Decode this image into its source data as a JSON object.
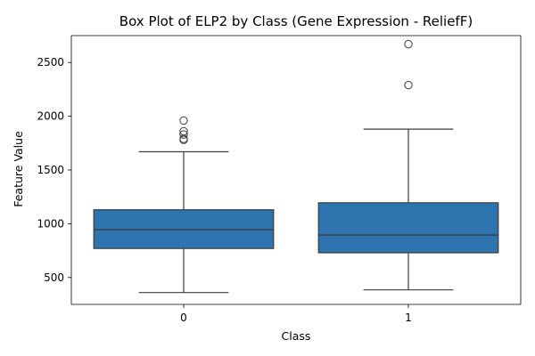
{
  "chart_data": {
    "type": "box",
    "title": "Box Plot of ELP2 by Class (Gene Expression - ReliefF)",
    "xlabel": "Class",
    "ylabel": "Feature Value",
    "categories": [
      "0",
      "1"
    ],
    "y_ticks": [
      500,
      1000,
      1500,
      2000,
      2500
    ],
    "y_tick_labels": [
      "500",
      "1000",
      "1500",
      "2000",
      "2500"
    ],
    "ylim": [
      250,
      2750
    ],
    "box_color": "#2e75b0",
    "edge_color": "#3d3d3d",
    "boxes": [
      {
        "category": "0",
        "whisker_low": 360,
        "q1": 770,
        "median": 945,
        "q3": 1130,
        "whisker_high": 1670,
        "outliers": [
          1780,
          1790,
          1830,
          1860,
          1960
        ]
      },
      {
        "category": "1",
        "whisker_low": 385,
        "q1": 730,
        "median": 895,
        "q3": 1195,
        "whisker_high": 1880,
        "outliers": [
          2290,
          2670
        ]
      }
    ],
    "grid": false,
    "legend": "none"
  }
}
